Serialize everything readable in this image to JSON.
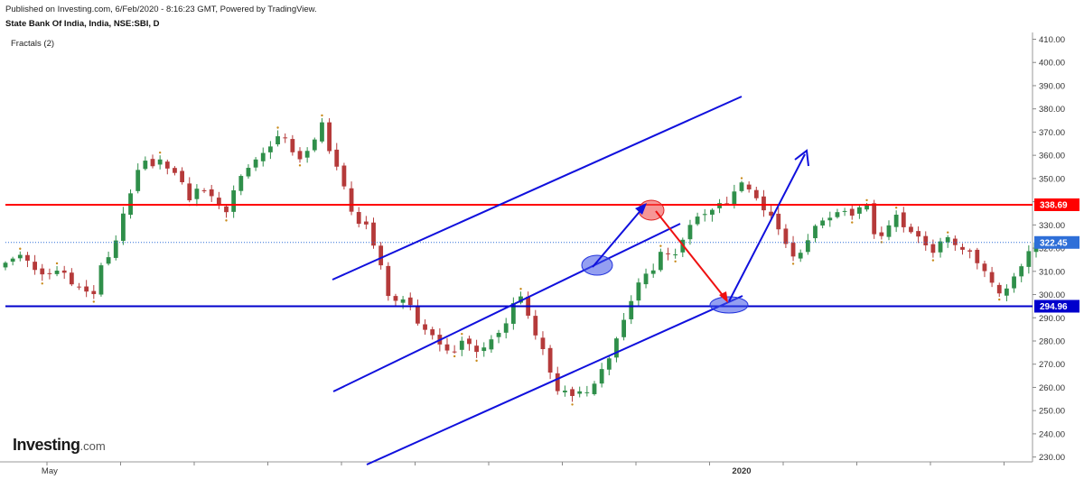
{
  "header": {
    "published": "Published on Investing.com, 6/Feb/2020 - 8:16:23 GMT, Powered by TradingView.",
    "title": "State Bank Of India, India, NSE:SBI, D",
    "indicator": "Fractals (2)"
  },
  "logo": {
    "main": "Investing",
    "suffix": ".com"
  },
  "chart_data": {
    "type": "candlestick",
    "y_axis": {
      "range": [
        228,
        412
      ],
      "ticks": [
        230,
        240,
        250,
        260,
        270,
        280,
        290,
        300,
        310,
        320,
        330,
        340,
        350,
        360,
        370,
        380,
        390,
        400,
        410
      ],
      "tick_labels": [
        "230.00",
        "240.00",
        "250.00",
        "260.00",
        "270.00",
        "280.00",
        "290.00",
        "300.00",
        "310.00",
        "320.00",
        "330.00",
        "340.00",
        "350.00",
        "360.00",
        "370.00",
        "380.00",
        "390.00",
        "400.00",
        "410.00"
      ]
    },
    "x_axis": {
      "labels": [
        {
          "text": "May",
          "index": 6
        },
        {
          "text": "2020",
          "index": 100
        }
      ]
    },
    "price_levels": [
      {
        "value": 338.69,
        "label": "338.69",
        "color": "#ff0000"
      },
      {
        "value": 322.45,
        "label": "322.45",
        "color": "#2e6fd8"
      },
      {
        "value": 294.96,
        "label": "294.96",
        "color": "#0000cc"
      }
    ],
    "candles_close": [
      313.7,
      315.5,
      317.1,
      314.6,
      310.6,
      308.7,
      308.8,
      310.3,
      309.4,
      304.4,
      303.3,
      301.3,
      300.2,
      312.6,
      316.1,
      323.3,
      334.9,
      343.6,
      353.7,
      357.7,
      355.3,
      358.2,
      354.3,
      352.4,
      348.4,
      340.6,
      345.6,
      344.5,
      342.4,
      338.3,
      335.5,
      344.9,
      351.1,
      354.6,
      358.2,
      361.0,
      363.8,
      368.2,
      367.5,
      361.3,
      358.3,
      361.9,
      366.8,
      374.2,
      361.8,
      355.1,
      346.6,
      335.7,
      330.5,
      330.2,
      321.1,
      312.6,
      299.4,
      297.3,
      297.9,
      295.5,
      287.5,
      284.8,
      282.5,
      278.5,
      275.9,
      275.3,
      280.1,
      278.7,
      275.3,
      277.2,
      280.7,
      283.5,
      287.6,
      296.3,
      299.2,
      290.9,
      282.4,
      276.5,
      266.4,
      258.4,
      258.6,
      256.3,
      258.3,
      257.9,
      261.6,
      267.9,
      272.5,
      281.1,
      289.1,
      297.2,
      305.2,
      309.0,
      310.4,
      318.4,
      317.5,
      317.3,
      323.6,
      330.0,
      333.6,
      334.7,
      336.5,
      339.4,
      339.3,
      344.4,
      348.3,
      345.3,
      341.5,
      336.3,
      334.0,
      328.1,
      321.8,
      316.4,
      318.0,
      323.4,
      329.6,
      331.9,
      333.1,
      335.5,
      336.0,
      334.0,
      337.6,
      338.7,
      326.0,
      325.2,
      329.8,
      334.4,
      329.0,
      326.9,
      325.0,
      321.2,
      318.0,
      322.9,
      324.7,
      321.3,
      319.3,
      318.5,
      313.5,
      310.1,
      305.1,
      300.5,
      302.6,
      307.8,
      312.2,
      318.7,
      322.45
    ]
  }
}
